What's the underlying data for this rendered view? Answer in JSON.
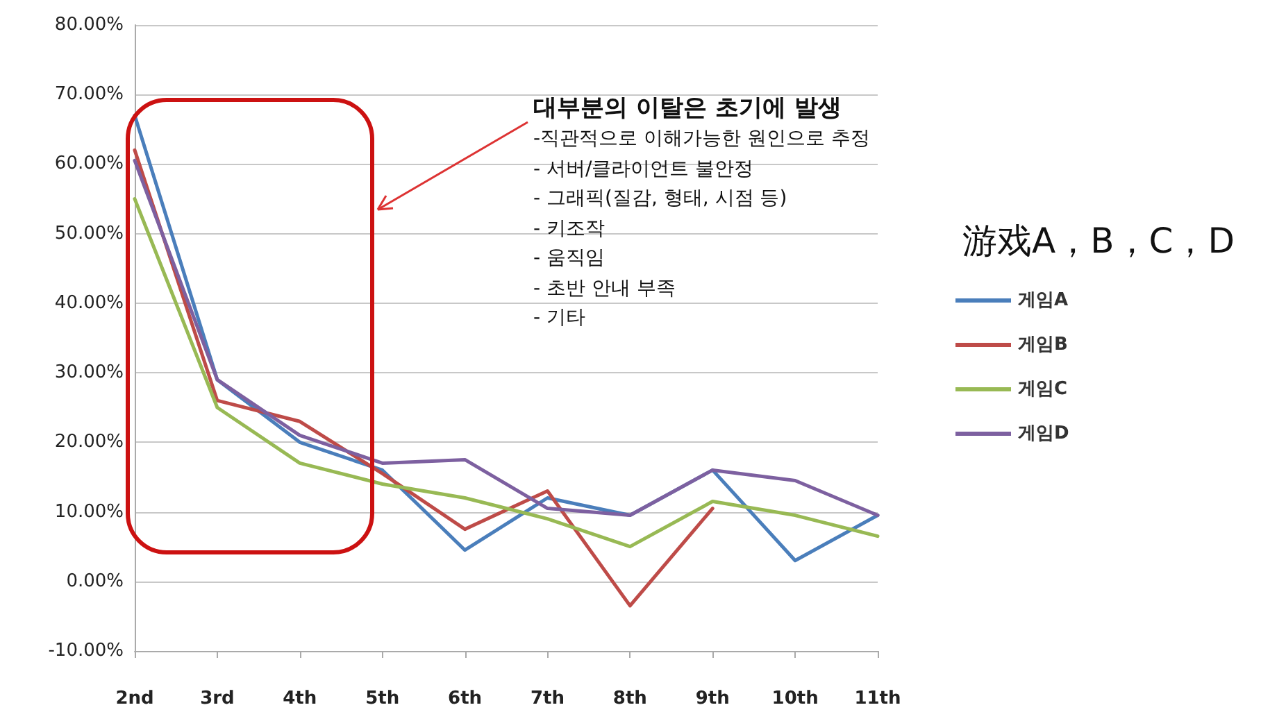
{
  "chart_data": {
    "type": "line",
    "categories": [
      "2nd",
      "3rd",
      "4th",
      "5th",
      "6th",
      "7th",
      "8th",
      "9th",
      "10th",
      "11th"
    ],
    "series": [
      {
        "name": "게임A",
        "color": "#4a7ebb",
        "values": [
          67,
          29,
          20,
          16,
          4.5,
          12,
          9.5,
          16,
          3,
          9.5
        ]
      },
      {
        "name": "게임B",
        "color": "#be4b48",
        "values": [
          62,
          26,
          23,
          15.5,
          7.5,
          13,
          -3.5,
          10.5,
          null,
          null
        ]
      },
      {
        "name": "게임C",
        "color": "#98b954",
        "values": [
          55,
          25,
          17,
          14,
          12,
          9,
          5,
          11.5,
          9.5,
          6.5
        ]
      },
      {
        "name": "게임D",
        "color": "#7d60a0",
        "values": [
          60.5,
          29,
          21,
          17,
          17.5,
          10.5,
          9.5,
          16,
          14.5,
          9.5
        ]
      }
    ],
    "ylim": [
      -10,
      80
    ],
    "yticks": [
      {
        "value": -10,
        "label": "-10.00%"
      },
      {
        "value": 0,
        "label": "0.00%"
      },
      {
        "value": 10,
        "label": "10.00%"
      },
      {
        "value": 20,
        "label": "20.00%"
      },
      {
        "value": 30,
        "label": "30.00%"
      },
      {
        "value": 40,
        "label": "40.00%"
      },
      {
        "value": 50,
        "label": "50.00%"
      },
      {
        "value": 60,
        "label": "60.00%"
      },
      {
        "value": 70,
        "label": "70.00%"
      },
      {
        "value": 80,
        "label": "80.00%"
      }
    ],
    "grid": "y",
    "legend": "right",
    "marker": "none",
    "line_style": "solid",
    "legend_title": "游戏A，B，C，D",
    "annotations": [
      "대부분의 이탈은 초기에 발생",
      "-직관적으로 이해가능한 원인으로 추정",
      "- 서버/클라이언트 불안정",
      "- 그래픽(질감, 형태, 시점 등)",
      "- 키조작",
      "- 움직임",
      "- 초반 안내 부족",
      "- 기타"
    ]
  }
}
